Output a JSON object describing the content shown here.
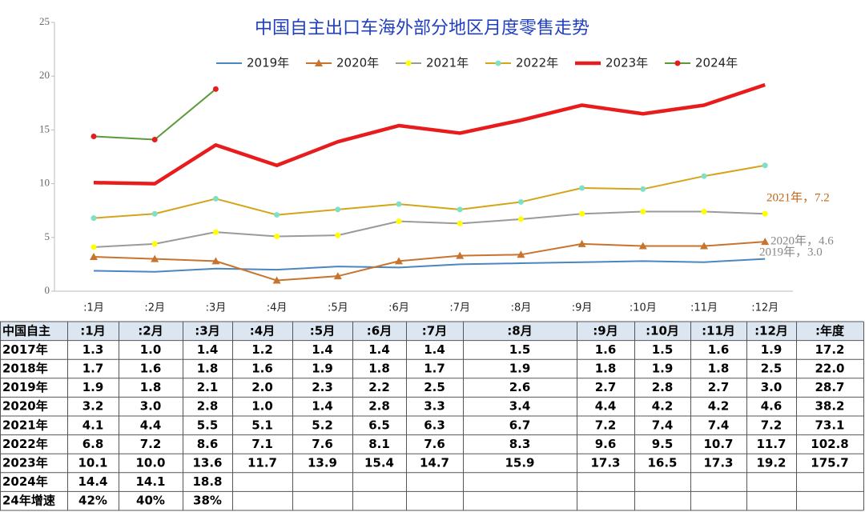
{
  "chart_data": {
    "type": "line",
    "title": "中国自主出口车海外部分地区月度零售走势",
    "categories": [
      ":1月",
      ":2月",
      ":3月",
      ":4月",
      ":5月",
      ":6月",
      ":7月",
      ":8月",
      ":9月",
      ":10月",
      ":11月",
      ":12月"
    ],
    "ylim": [
      0,
      25
    ],
    "yticks": [
      0,
      5,
      10,
      15,
      20,
      25
    ],
    "grid": false,
    "legend": "top",
    "series": [
      {
        "name": "2019年",
        "color": "#4a86c0",
        "width": 2,
        "values": [
          1.9,
          1.8,
          2.1,
          2.0,
          2.3,
          2.2,
          2.5,
          2.6,
          2.7,
          2.8,
          2.7,
          3.0
        ]
      },
      {
        "name": "2020年",
        "color": "#c8742e",
        "width": 2,
        "marker": "triangle",
        "marker_color": "#c8742e",
        "values": [
          3.2,
          3.0,
          2.8,
          1.0,
          1.4,
          2.8,
          3.3,
          3.4,
          4.4,
          4.2,
          4.2,
          4.6
        ]
      },
      {
        "name": "2021年",
        "color": "#9a9a9a",
        "width": 2,
        "marker": "circle",
        "marker_color": "#ffff00",
        "values": [
          4.1,
          4.4,
          5.5,
          5.1,
          5.2,
          6.5,
          6.3,
          6.7,
          7.2,
          7.4,
          7.4,
          7.2
        ]
      },
      {
        "name": "2022年",
        "color": "#d4a419",
        "width": 2,
        "marker": "circle",
        "marker_color": "#7fe0c8",
        "values": [
          6.8,
          7.2,
          8.6,
          7.1,
          7.6,
          8.1,
          7.6,
          8.3,
          9.6,
          9.5,
          10.7,
          11.7
        ]
      },
      {
        "name": "2023年",
        "color": "#e81c1c",
        "width": 4.5,
        "values": [
          10.1,
          10.0,
          13.6,
          11.7,
          13.9,
          15.4,
          14.7,
          15.9,
          17.3,
          16.5,
          17.3,
          19.2
        ]
      },
      {
        "name": "2024年",
        "color": "#5a9a3a",
        "width": 2,
        "marker": "circle",
        "marker_color": "#e81c1c",
        "values": [
          14.4,
          14.1,
          18.8,
          null,
          null,
          null,
          null,
          null,
          null,
          null,
          null,
          null
        ]
      }
    ],
    "annotations": [
      "2021年，7.2",
      "2020年，4.6",
      "2019年，3.0"
    ]
  },
  "table": {
    "header": [
      "中国自主",
      ":1月",
      ":2月",
      ":3月",
      ":4月",
      ":5月",
      ":6月",
      ":7月",
      ":8月",
      ":9月",
      ":10月",
      ":11月",
      ":12月",
      ":年度"
    ],
    "rows": [
      [
        "2017年",
        "1.3",
        "1.0",
        "1.4",
        "1.2",
        "1.4",
        "1.4",
        "1.4",
        "1.5",
        "1.6",
        "1.5",
        "1.6",
        "1.9",
        "17.2"
      ],
      [
        "2018年",
        "1.7",
        "1.6",
        "1.8",
        "1.6",
        "1.9",
        "1.8",
        "1.7",
        "1.9",
        "1.8",
        "1.9",
        "1.8",
        "2.5",
        "22.0"
      ],
      [
        "2019年",
        "1.9",
        "1.8",
        "2.1",
        "2.0",
        "2.3",
        "2.2",
        "2.5",
        "2.6",
        "2.7",
        "2.8",
        "2.7",
        "3.0",
        "28.7"
      ],
      [
        "2020年",
        "3.2",
        "3.0",
        "2.8",
        "1.0",
        "1.4",
        "2.8",
        "3.3",
        "3.4",
        "4.4",
        "4.2",
        "4.2",
        "4.6",
        "38.2"
      ],
      [
        "2021年",
        "4.1",
        "4.4",
        "5.5",
        "5.1",
        "5.2",
        "6.5",
        "6.3",
        "6.7",
        "7.2",
        "7.4",
        "7.4",
        "7.2",
        "73.1"
      ],
      [
        "2022年",
        "6.8",
        "7.2",
        "8.6",
        "7.1",
        "7.6",
        "8.1",
        "7.6",
        "8.3",
        "9.6",
        "9.5",
        "10.7",
        "11.7",
        "102.8"
      ],
      [
        "2023年",
        "10.1",
        "10.0",
        "13.6",
        "11.7",
        "13.9",
        "15.4",
        "14.7",
        "15.9",
        "17.3",
        "16.5",
        "17.3",
        "19.2",
        "175.7"
      ],
      [
        "2024年",
        "14.4",
        "14.1",
        "18.8"
      ],
      [
        "24年增速",
        "42%",
        "40%",
        "38%"
      ]
    ]
  }
}
